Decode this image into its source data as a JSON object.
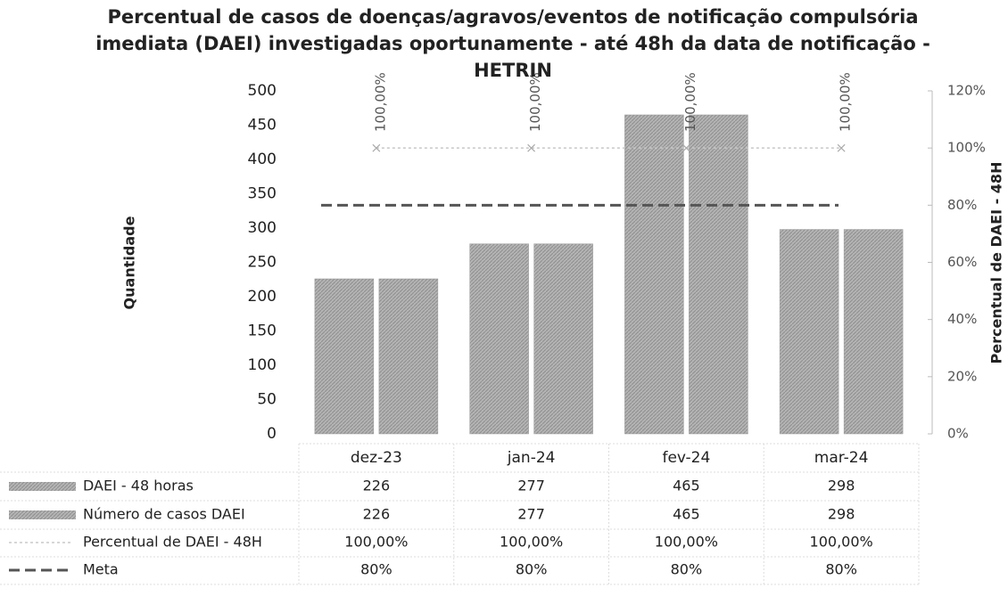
{
  "chart_data": {
    "type": "bar",
    "title": "Percentual de casos de doenças/agravos/eventos de notificação compulsória imediata (DAEI) investigadas oportunamente - até 48h da data de notificação - HETRIN",
    "ylabel": "Quantidade",
    "y2label": "Percentual de DAEI - 48H",
    "categories": [
      "dez-23",
      "jan-24",
      "fev-24",
      "mar-24"
    ],
    "series": [
      {
        "name": "DAEI - 48 horas",
        "type": "bar",
        "color": "#a9a9a9",
        "values": [
          226,
          277,
          465,
          298
        ]
      },
      {
        "name": "Número de casos DAEI",
        "type": "bar",
        "color": "#a9a9a9",
        "values": [
          226,
          277,
          465,
          298
        ]
      },
      {
        "name": "Percentual de DAEI - 48H",
        "type": "line",
        "axis": "y2",
        "color": "#c8c8c8",
        "values": [
          100,
          100,
          100,
          100
        ],
        "value_labels": [
          "100,00%",
          "100,00%",
          "100,00%",
          "100,00%"
        ]
      },
      {
        "name": "Meta",
        "type": "line",
        "axis": "y2",
        "color": "#555555",
        "values": [
          80,
          80,
          80,
          80
        ],
        "value_labels": [
          "80%",
          "80%",
          "80%",
          "80%"
        ]
      }
    ],
    "ylim": [
      0,
      500
    ],
    "yticks": [
      0,
      50,
      100,
      150,
      200,
      250,
      300,
      350,
      400,
      450,
      500
    ],
    "y2lim": [
      0,
      120
    ],
    "y2ticks": [
      {
        "value": 0,
        "label": "0%"
      },
      {
        "value": 20,
        "label": "20%"
      },
      {
        "value": 40,
        "label": "40%"
      },
      {
        "value": 60,
        "label": "60%"
      },
      {
        "value": 80,
        "label": "80%"
      },
      {
        "value": 100,
        "label": "100%"
      },
      {
        "value": 120,
        "label": "120%"
      }
    ]
  }
}
